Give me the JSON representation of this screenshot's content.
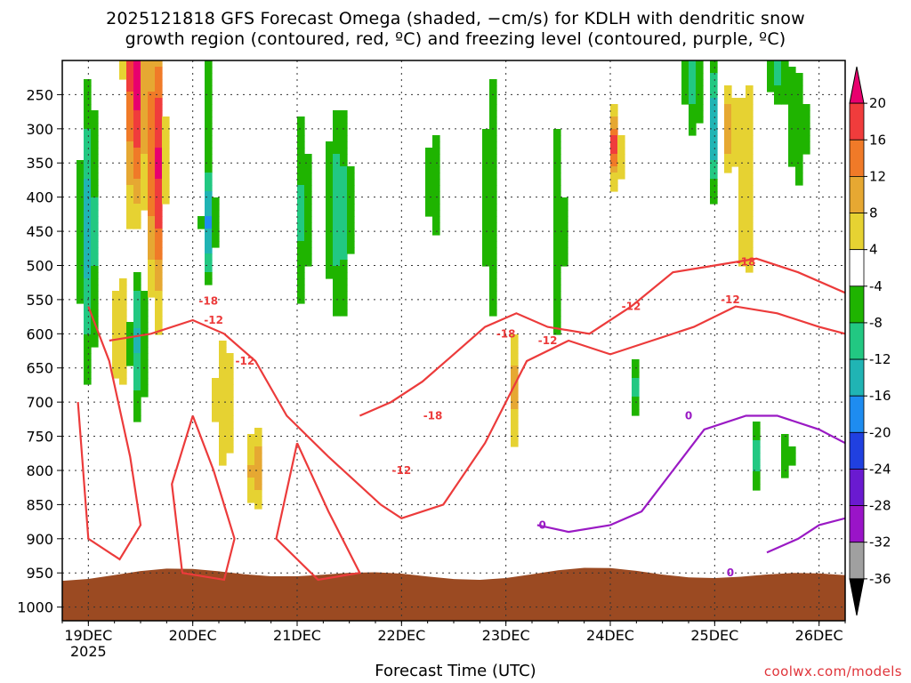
{
  "title_line1": "2025121818 GFS Forecast Omega (shaded, −cm/s) for KDLH with dendritic snow",
  "title_line2": "growth region (contoured, red, ºC) and freezing level (contoured, purple, ºC)",
  "credit": "coolwx.com/models",
  "chart_data": {
    "type": "heatmap",
    "xlabel": "Forecast Time (UTC)",
    "ylabel": "",
    "x_ticks": [
      "19DEC",
      "20DEC",
      "21DEC",
      "22DEC",
      "23DEC",
      "24DEC",
      "25DEC",
      "26DEC"
    ],
    "x_year_label": "2025",
    "y_ticks": [
      250,
      300,
      350,
      400,
      450,
      500,
      550,
      600,
      650,
      700,
      750,
      800,
      850,
      900,
      950,
      1000
    ],
    "y_range_hpa": [
      200,
      1020
    ],
    "x_range_days": [
      18.75,
      26.25
    ],
    "grid": true,
    "colorbar": {
      "labels": [
        20,
        16,
        12,
        8,
        4,
        -4,
        -8,
        -12,
        -16,
        -20,
        -24,
        -28,
        -32,
        -36
      ],
      "colors": [
        "#e8006e",
        "#f03c3c",
        "#f07a28",
        "#e6a832",
        "#e6d232",
        "#ffffff",
        "#1fb400",
        "#22c882",
        "#20b4b4",
        "#1e8cf0",
        "#2040e0",
        "#6a1ad0",
        "#9a14c8",
        "#a0a0a0",
        "#000000"
      ]
    },
    "contour_labels": {
      "dgz": [
        "-12",
        "-18",
        "-12",
        "-18",
        "-12",
        "-18",
        "-12",
        "-12",
        "-18",
        "-12"
      ],
      "freezing": [
        "0",
        "0",
        "0"
      ]
    },
    "ground_color": "#9b4a22",
    "series": [
      {
        "name": "-12",
        "color": "#ec3b3b",
        "points": [
          [
            19.2,
            610
          ],
          [
            19.6,
            600
          ],
          [
            20.0,
            580
          ],
          [
            20.3,
            600
          ],
          [
            20.6,
            640
          ],
          [
            20.9,
            720
          ],
          [
            21.3,
            780
          ],
          [
            21.8,
            850
          ],
          [
            22.0,
            870
          ],
          [
            22.4,
            850
          ],
          [
            22.8,
            760
          ],
          [
            23.2,
            640
          ],
          [
            23.6,
            610
          ],
          [
            24.0,
            630
          ],
          [
            24.4,
            610
          ],
          [
            24.8,
            590
          ],
          [
            25.2,
            560
          ],
          [
            25.6,
            570
          ],
          [
            26.0,
            590
          ],
          [
            26.25,
            600
          ]
        ]
      },
      {
        "name": "-18",
        "color": "#ec3b3b",
        "points": [
          [
            21.6,
            720
          ],
          [
            21.9,
            700
          ],
          [
            22.2,
            670
          ],
          [
            22.5,
            630
          ],
          [
            22.8,
            590
          ],
          [
            23.1,
            570
          ],
          [
            23.4,
            590
          ],
          [
            23.8,
            600
          ],
          [
            24.2,
            560
          ],
          [
            24.6,
            510
          ],
          [
            25.0,
            500
          ],
          [
            25.4,
            490
          ],
          [
            25.8,
            510
          ],
          [
            26.25,
            540
          ]
        ]
      },
      {
        "name": "0",
        "color": "#9a1ac4",
        "points": [
          [
            23.3,
            880
          ],
          [
            23.6,
            890
          ],
          [
            24.0,
            880
          ],
          [
            24.3,
            860
          ],
          [
            24.6,
            800
          ],
          [
            24.9,
            740
          ],
          [
            25.3,
            720
          ],
          [
            25.6,
            720
          ],
          [
            26.0,
            740
          ],
          [
            26.25,
            760
          ]
        ]
      }
    ]
  }
}
